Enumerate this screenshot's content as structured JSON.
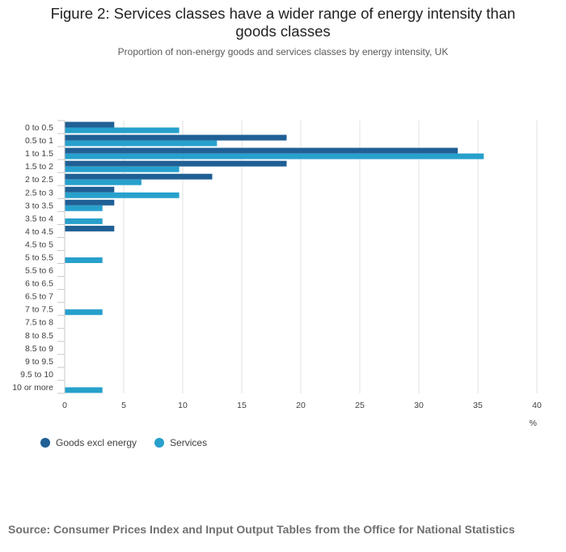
{
  "title": "Figure 2: Services classes have a wider range of energy intensity than goods classes",
  "subtitle": "Proportion of non-energy goods and services classes by energy intensity, UK",
  "source": "Source: Consumer Prices Index and Input Output Tables from the Office for National Statistics",
  "colors": {
    "goods": "#206095",
    "services": "#27a0cc",
    "grid": "#e0e0e0",
    "axis": "#c8c8c8"
  },
  "chart_data": {
    "type": "bar",
    "orientation": "horizontal",
    "categories": [
      "0 to 0.5",
      "0.5 to 1",
      "1 to 1.5",
      "1.5 to 2",
      "2 to 2.5",
      "2.5 to 3",
      "3 to 3.5",
      "3.5 to 4",
      "4 to 4.5",
      "4.5 to 5",
      "5 to 5.5",
      "5.5 to 6",
      "6 to 6.5",
      "6.5 to 7",
      "7 to 7.5",
      "7.5 to 8",
      "8 to 8.5",
      "8.5 to 9",
      "9 to 9.5",
      "9.5 to 10",
      "10 or more"
    ],
    "series": [
      {
        "name": "Goods excl energy",
        "values": [
          4.2,
          18.8,
          33.3,
          18.8,
          12.5,
          4.2,
          4.2,
          0,
          4.2,
          0,
          0,
          0,
          0,
          0,
          0,
          0,
          0,
          0,
          0,
          0,
          0
        ]
      },
      {
        "name": "Services",
        "values": [
          9.7,
          12.9,
          35.5,
          9.7,
          6.5,
          9.7,
          3.2,
          3.2,
          0,
          0,
          3.2,
          0,
          0,
          0,
          3.2,
          0,
          0,
          0,
          0,
          0,
          3.2
        ]
      }
    ],
    "xlim": [
      0,
      40
    ],
    "xticks": [
      0,
      5,
      10,
      15,
      20,
      25,
      30,
      35,
      40
    ],
    "xlabel": "%",
    "ylabel": "",
    "grid": true,
    "legend_position": "bottom-left"
  }
}
